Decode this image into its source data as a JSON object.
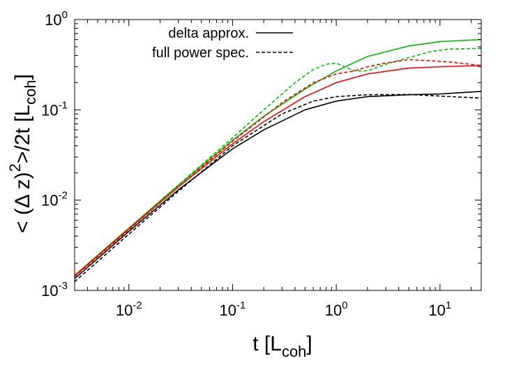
{
  "chart_data": {
    "type": "line",
    "xscale": "log",
    "yscale": "log",
    "xlim": [
      0.003,
      25
    ],
    "ylim": [
      0.001,
      1
    ],
    "xticks": [
      {
        "value": 0.01,
        "base": "10",
        "exp": "-2"
      },
      {
        "value": 0.1,
        "base": "10",
        "exp": "-1"
      },
      {
        "value": 1,
        "base": "10",
        "exp": "0"
      },
      {
        "value": 10,
        "base": "10",
        "exp": "1"
      }
    ],
    "yticks": [
      {
        "value": 0.001,
        "base": "10",
        "exp": "-3"
      },
      {
        "value": 0.01,
        "base": "10",
        "exp": "-2"
      },
      {
        "value": 0.1,
        "base": "10",
        "exp": "-1"
      },
      {
        "value": 1,
        "base": "10",
        "exp": "0"
      }
    ],
    "xlabel": {
      "main": "t [L",
      "sub": "coh",
      "close": "]"
    },
    "ylabel": {
      "a": "< (Δ z)",
      "sup": "2",
      "b": ">/2t [L",
      "sub": "coh",
      "close": "]"
    },
    "grid": false,
    "legend": {
      "placement": "top-center",
      "entries": [
        {
          "label": "delta approx.",
          "style": "solid",
          "color": "#000000"
        },
        {
          "label": "full power spec.",
          "style": "dashed",
          "color": "#000000"
        }
      ]
    },
    "series": [
      {
        "color": "#00bb00",
        "style": "solid",
        "points": [
          [
            0.003,
            0.00147
          ],
          [
            0.01,
            0.0049
          ],
          [
            0.03,
            0.0146
          ],
          [
            0.1,
            0.046
          ],
          [
            0.2,
            0.085
          ],
          [
            0.5,
            0.17
          ],
          [
            1,
            0.27
          ],
          [
            2,
            0.39
          ],
          [
            5,
            0.51
          ],
          [
            10,
            0.57
          ],
          [
            25,
            0.6
          ]
        ]
      },
      {
        "color": "#00bb00",
        "style": "dashed",
        "points": [
          [
            0.003,
            0.00147
          ],
          [
            0.01,
            0.0049
          ],
          [
            0.03,
            0.0147
          ],
          [
            0.1,
            0.049
          ],
          [
            0.2,
            0.1
          ],
          [
            0.4,
            0.2
          ],
          [
            0.6,
            0.28
          ],
          [
            0.8,
            0.32
          ],
          [
            1,
            0.33
          ],
          [
            1.2,
            0.3
          ],
          [
            1.5,
            0.27
          ],
          [
            2,
            0.27
          ],
          [
            3,
            0.32
          ],
          [
            5,
            0.38
          ],
          [
            8,
            0.44
          ],
          [
            12,
            0.47
          ],
          [
            25,
            0.48
          ]
        ]
      },
      {
        "color": "#ff0000",
        "style": "solid",
        "points": [
          [
            0.003,
            0.00145
          ],
          [
            0.01,
            0.0048
          ],
          [
            0.03,
            0.014
          ],
          [
            0.1,
            0.042
          ],
          [
            0.2,
            0.074
          ],
          [
            0.5,
            0.14
          ],
          [
            1,
            0.2
          ],
          [
            2,
            0.25
          ],
          [
            5,
            0.29
          ],
          [
            10,
            0.3
          ],
          [
            25,
            0.31
          ]
        ]
      },
      {
        "color": "#ff0000",
        "style": "dashed",
        "points": [
          [
            0.003,
            0.00142
          ],
          [
            0.01,
            0.0047
          ],
          [
            0.03,
            0.014
          ],
          [
            0.1,
            0.045
          ],
          [
            0.3,
            0.12
          ],
          [
            0.6,
            0.2
          ],
          [
            1,
            0.25
          ],
          [
            1.5,
            0.27
          ],
          [
            2,
            0.3
          ],
          [
            3,
            0.33
          ],
          [
            5,
            0.36
          ],
          [
            8,
            0.35
          ],
          [
            12,
            0.34
          ],
          [
            25,
            0.31
          ]
        ]
      },
      {
        "color": "#000000",
        "style": "solid",
        "points": [
          [
            0.003,
            0.00135
          ],
          [
            0.01,
            0.0045
          ],
          [
            0.03,
            0.013
          ],
          [
            0.1,
            0.037
          ],
          [
            0.2,
            0.06
          ],
          [
            0.5,
            0.1
          ],
          [
            1,
            0.125
          ],
          [
            2,
            0.14
          ],
          [
            5,
            0.147
          ],
          [
            10,
            0.15
          ],
          [
            25,
            0.16
          ]
        ]
      },
      {
        "color": "#000000",
        "style": "dashed",
        "points": [
          [
            0.003,
            0.00125
          ],
          [
            0.01,
            0.0042
          ],
          [
            0.03,
            0.0125
          ],
          [
            0.1,
            0.04
          ],
          [
            0.3,
            0.09
          ],
          [
            0.6,
            0.125
          ],
          [
            1,
            0.14
          ],
          [
            2,
            0.147
          ],
          [
            5,
            0.148
          ],
          [
            10,
            0.142
          ],
          [
            25,
            0.135
          ]
        ]
      }
    ]
  }
}
